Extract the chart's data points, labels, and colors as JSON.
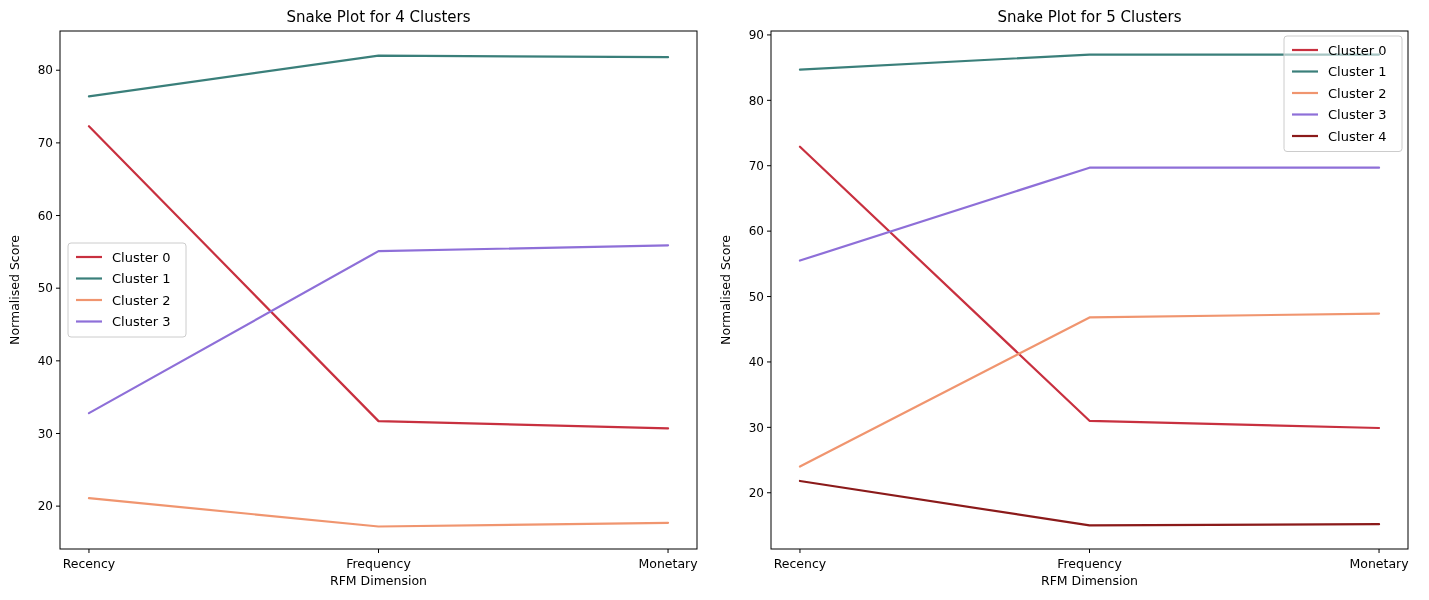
{
  "chart_data": [
    {
      "type": "line",
      "title": "Snake Plot for 4 Clusters",
      "xlabel": "RFM Dimension",
      "ylabel": "Normalised Score",
      "categories": [
        "Recency",
        "Frequency",
        "Monetary"
      ],
      "ylim": [
        14.1,
        85.4
      ],
      "yticks": [
        20,
        30,
        40,
        50,
        60,
        70,
        80
      ],
      "legend": "center left",
      "series": [
        {
          "name": "Cluster 0",
          "color": "#c8303f",
          "values": [
            72.3,
            31.7,
            30.7
          ]
        },
        {
          "name": "Cluster 1",
          "color": "#3a7f7a",
          "values": [
            76.4,
            82.0,
            81.8
          ]
        },
        {
          "name": "Cluster 2",
          "color": "#f0956f",
          "values": [
            21.1,
            17.2,
            17.7
          ]
        },
        {
          "name": "Cluster 3",
          "color": "#8e6fd8",
          "values": [
            32.8,
            55.1,
            55.9
          ]
        }
      ]
    },
    {
      "type": "line",
      "title": "Snake Plot for 5 Clusters",
      "xlabel": "RFM Dimension",
      "ylabel": "Normalised Score",
      "categories": [
        "Recency",
        "Frequency",
        "Monetary"
      ],
      "ylim": [
        11.4,
        90.6
      ],
      "yticks": [
        20,
        30,
        40,
        50,
        60,
        70,
        80,
        90
      ],
      "legend": "top right",
      "series": [
        {
          "name": "Cluster 0",
          "color": "#c8303f",
          "values": [
            72.9,
            31.0,
            29.9
          ]
        },
        {
          "name": "Cluster 1",
          "color": "#3a7f7a",
          "values": [
            84.7,
            87.0,
            87.0
          ]
        },
        {
          "name": "Cluster 2",
          "color": "#f0956f",
          "values": [
            24.0,
            46.8,
            47.4
          ]
        },
        {
          "name": "Cluster 3",
          "color": "#8e6fd8",
          "values": [
            55.5,
            69.7,
            69.7
          ]
        },
        {
          "name": "Cluster 4",
          "color": "#8b1a1a",
          "values": [
            21.8,
            15.0,
            15.2
          ]
        }
      ]
    }
  ]
}
